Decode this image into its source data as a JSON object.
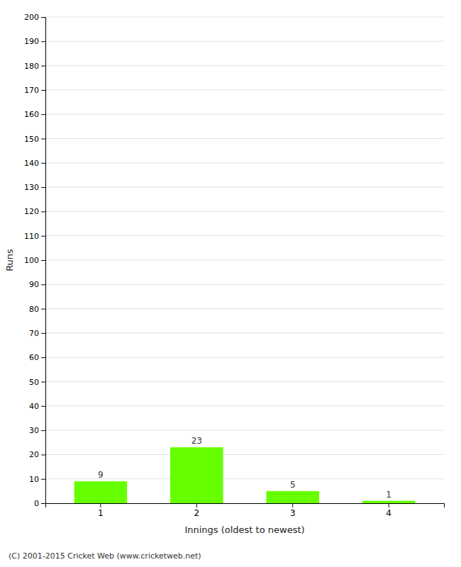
{
  "chart_data": {
    "type": "bar",
    "categories": [
      "1",
      "2",
      "3",
      "4"
    ],
    "values": [
      9,
      23,
      5,
      1
    ],
    "color": "#66ff00",
    "xlabel": "Innings (oldest to newest)",
    "ylabel": "Runs",
    "ylim": [
      0,
      200
    ],
    "yticks": [
      0,
      10,
      20,
      30,
      40,
      50,
      60,
      70,
      80,
      90,
      100,
      110,
      120,
      130,
      140,
      150,
      160,
      170,
      180,
      190,
      200
    ],
    "grid": true,
    "data_labels": true,
    "annotations": [
      "(C) 2001-2015 Cricket Web (www.cricketweb.net)"
    ]
  }
}
